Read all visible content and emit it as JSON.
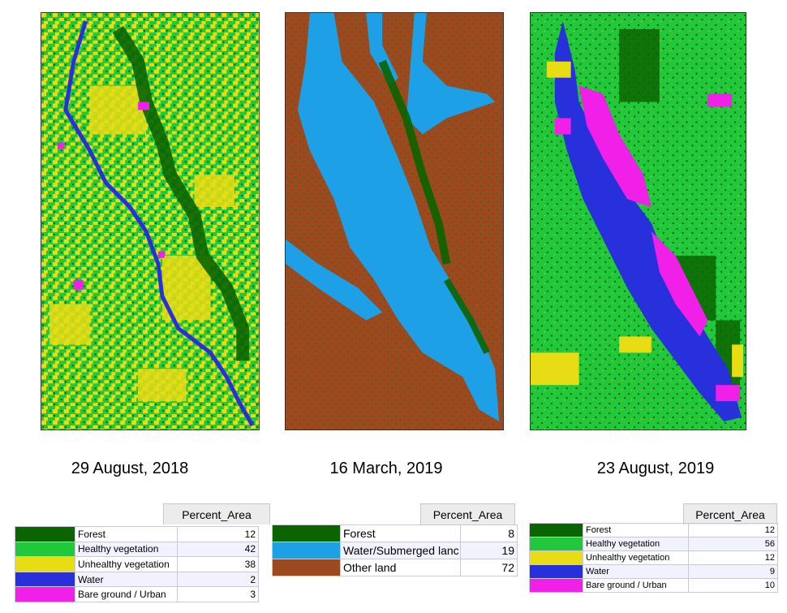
{
  "colors": {
    "forest": "#0a6400",
    "healthy": "#22c83c",
    "unhealthy": "#e8dc14",
    "water": "#2830dc",
    "bare": "#f020e8",
    "water_submerged": "#1ea0e6",
    "other_land": "#9a4a1e"
  },
  "panels": [
    {
      "date": "29 August, 2018",
      "legend": {
        "header": "Percent_Area",
        "rows": [
          {
            "label": "Forest",
            "value": "12",
            "color": "#0a6400"
          },
          {
            "label": "Healthy vegetation",
            "value": "42",
            "color": "#22c83c"
          },
          {
            "label": "Unhealthy vegetation",
            "value": "38",
            "color": "#e8dc14"
          },
          {
            "label": "Water",
            "value": "2",
            "color": "#2830dc"
          },
          {
            "label": "Bare ground / Urban",
            "value": "3",
            "color": "#f020e8"
          }
        ]
      }
    },
    {
      "date": "16 March, 2019",
      "legend": {
        "header": "Percent_Area",
        "rows": [
          {
            "label": "Forest",
            "value": "8",
            "color": "#0a6400"
          },
          {
            "label": "Water/Submerged lanc",
            "value": "19",
            "color": "#1ea0e6"
          },
          {
            "label": "Other land",
            "value": "72",
            "color": "#9a4a1e"
          }
        ]
      }
    },
    {
      "date": "23 August, 2019",
      "legend": {
        "header": "Percent_Area",
        "rows": [
          {
            "label": "Forest",
            "value": "12",
            "color": "#0a6400"
          },
          {
            "label": "Healthy vegetation",
            "value": "56",
            "color": "#22c83c"
          },
          {
            "label": "Unhealthy vegetation",
            "value": "12",
            "color": "#e8dc14"
          },
          {
            "label": "Water",
            "value": "9",
            "color": "#2830dc"
          },
          {
            "label": "Bare ground / Urban",
            "value": "10",
            "color": "#f020e8"
          }
        ]
      }
    }
  ]
}
